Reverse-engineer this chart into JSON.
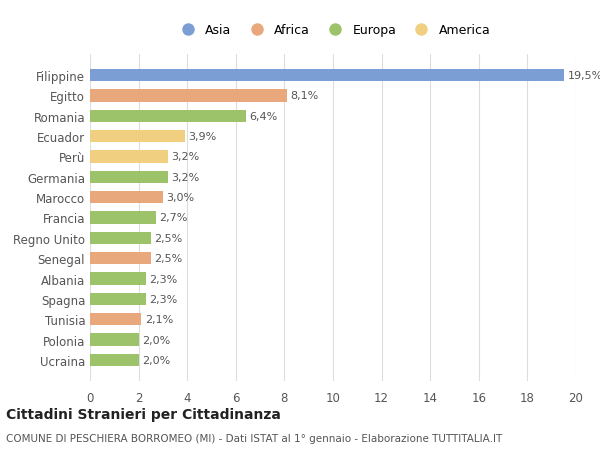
{
  "categories": [
    "Ucraina",
    "Polonia",
    "Tunisia",
    "Spagna",
    "Albania",
    "Senegal",
    "Regno Unito",
    "Francia",
    "Marocco",
    "Germania",
    "Perù",
    "Ecuador",
    "Romania",
    "Egitto",
    "Filippine"
  ],
  "values": [
    2.0,
    2.0,
    2.1,
    2.3,
    2.3,
    2.5,
    2.5,
    2.7,
    3.0,
    3.2,
    3.2,
    3.9,
    6.4,
    8.1,
    19.5
  ],
  "labels": [
    "2,0%",
    "2,0%",
    "2,1%",
    "2,3%",
    "2,3%",
    "2,5%",
    "2,5%",
    "2,7%",
    "3,0%",
    "3,2%",
    "3,2%",
    "3,9%",
    "6,4%",
    "8,1%",
    "19,5%"
  ],
  "colors": [
    "#9dc36a",
    "#9dc36a",
    "#e8a87c",
    "#9dc36a",
    "#9dc36a",
    "#e8a87c",
    "#9dc36a",
    "#9dc36a",
    "#e8a87c",
    "#9dc36a",
    "#f0d080",
    "#f0d080",
    "#9dc36a",
    "#e8a87c",
    "#7b9fd4"
  ],
  "legend_names": [
    "Asia",
    "Africa",
    "Europa",
    "America"
  ],
  "legend_colors": [
    "#7b9fd4",
    "#e8a87c",
    "#9dc36a",
    "#f0d080"
  ],
  "title": "Cittadini Stranieri per Cittadinanza",
  "subtitle": "COMUNE DI PESCHIERA BORROMEO (MI) - Dati ISTAT al 1° gennaio - Elaborazione TUTTITALIA.IT",
  "xlim": [
    0,
    20
  ],
  "xticks": [
    0,
    2,
    4,
    6,
    8,
    10,
    12,
    14,
    16,
    18,
    20
  ],
  "background_color": "#ffffff",
  "grid_color": "#dddddd"
}
